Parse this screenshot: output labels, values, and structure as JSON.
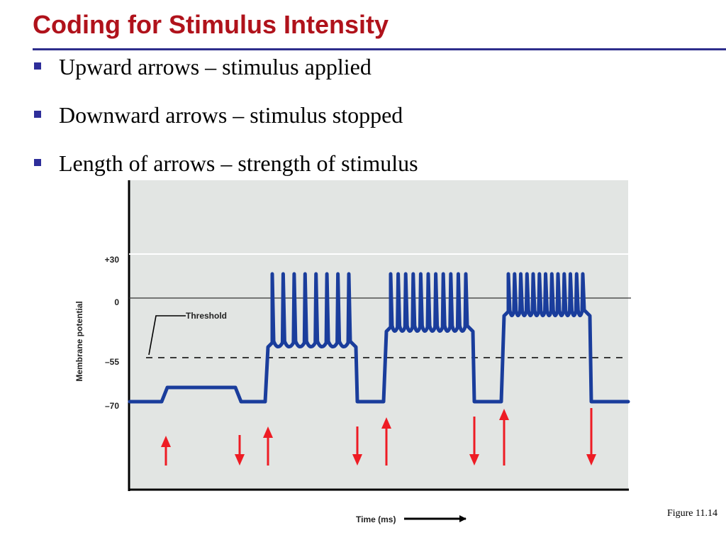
{
  "title": "Coding for Stimulus Intensity",
  "bullets": [
    "Upward arrows – stimulus applied",
    "Downward arrows – stimulus stopped",
    "Length of arrows – strength of stimulus"
  ],
  "figure": {
    "y_axis_label": "Membrane potential",
    "x_axis_label": "Time (ms)",
    "y_ticks": [
      "+30",
      "0",
      "–55",
      "–70"
    ],
    "threshold_label": "Threshold",
    "caption": "Figure 11.14",
    "colors": {
      "trace": "#1a3d9c",
      "arrow": "#ee1c24",
      "plot_bg": "#e2e5e3",
      "title": "#b0121b"
    },
    "stimuli": [
      {
        "strength": "weak",
        "response": "subthreshold",
        "spikes": 0
      },
      {
        "strength": "moderate",
        "response": "spike train",
        "spikes": 8
      },
      {
        "strength": "strong",
        "response": "spike train",
        "spikes": 11
      },
      {
        "strength": "strongest",
        "response": "spike train",
        "spikes": 13
      }
    ]
  }
}
